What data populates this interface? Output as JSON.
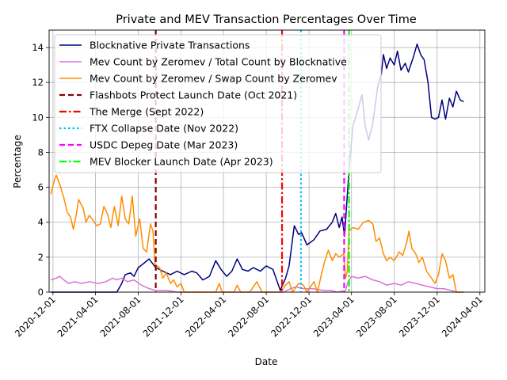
{
  "chart_data": {
    "type": "line",
    "title": "Private and MEV Transaction Percentages Over Time",
    "xlabel": "Date",
    "ylabel": "Percentage",
    "xlim": [
      "2020-11-20",
      "2024-04-15"
    ],
    "ylim": [
      0,
      15
    ],
    "grid": true,
    "legend_position": "upper-left",
    "x_ticks": [
      "2020-12-01",
      "2021-04-01",
      "2021-08-01",
      "2021-12-01",
      "2022-04-01",
      "2022-08-01",
      "2022-12-01",
      "2023-04-01",
      "2023-08-01",
      "2023-12-01",
      "2024-04-01"
    ],
    "y_ticks": [
      0,
      2,
      4,
      6,
      8,
      10,
      12,
      14
    ],
    "series": [
      {
        "name": "Blocknative Private Transactions",
        "color": "#000080",
        "style": "solid",
        "points": [
          [
            "2020-11-25",
            0
          ],
          [
            "2021-06-01",
            0
          ],
          [
            "2021-06-15",
            0.5
          ],
          [
            "2021-06-25",
            1.0
          ],
          [
            "2021-07-10",
            1.1
          ],
          [
            "2021-07-20",
            0.9
          ],
          [
            "2021-08-01",
            1.4
          ],
          [
            "2021-08-20",
            1.7
          ],
          [
            "2021-09-01",
            1.9
          ],
          [
            "2021-09-20",
            1.4
          ],
          [
            "2021-10-10",
            1.2
          ],
          [
            "2021-11-01",
            1.0
          ],
          [
            "2021-11-20",
            1.2
          ],
          [
            "2021-12-10",
            1.0
          ],
          [
            "2022-01-01",
            1.2
          ],
          [
            "2022-01-15",
            1.1
          ],
          [
            "2022-02-01",
            0.7
          ],
          [
            "2022-02-20",
            0.9
          ],
          [
            "2022-03-10",
            1.8
          ],
          [
            "2022-03-25",
            1.3
          ],
          [
            "2022-04-10",
            0.9
          ],
          [
            "2022-04-25",
            1.2
          ],
          [
            "2022-05-10",
            1.9
          ],
          [
            "2022-05-25",
            1.3
          ],
          [
            "2022-06-10",
            1.2
          ],
          [
            "2022-06-25",
            1.4
          ],
          [
            "2022-07-15",
            1.2
          ],
          [
            "2022-08-01",
            1.5
          ],
          [
            "2022-08-20",
            1.3
          ],
          [
            "2022-09-10",
            0.1
          ],
          [
            "2022-09-25",
            0.8
          ],
          [
            "2022-10-05",
            1.5
          ],
          [
            "2022-10-20",
            3.8
          ],
          [
            "2022-11-01",
            3.3
          ],
          [
            "2022-11-10",
            3.4
          ],
          [
            "2022-11-25",
            2.7
          ],
          [
            "2022-12-15",
            3.0
          ],
          [
            "2023-01-01",
            3.5
          ],
          [
            "2023-01-20",
            3.6
          ],
          [
            "2023-02-05",
            4.0
          ],
          [
            "2023-02-15",
            4.5
          ],
          [
            "2023-02-25",
            3.7
          ],
          [
            "2023-03-05",
            4.3
          ],
          [
            "2023-03-12",
            3.2
          ],
          [
            "2023-03-25",
            7.0
          ],
          [
            "2023-04-05",
            9.5
          ],
          [
            "2023-04-20",
            10.5
          ],
          [
            "2023-05-01",
            11.3
          ],
          [
            "2023-05-10",
            9.5
          ],
          [
            "2023-05-20",
            8.7
          ],
          [
            "2023-06-01",
            9.7
          ],
          [
            "2023-06-15",
            11.8
          ],
          [
            "2023-06-25",
            12.5
          ],
          [
            "2023-07-01",
            13.6
          ],
          [
            "2023-07-10",
            12.8
          ],
          [
            "2023-07-20",
            13.4
          ],
          [
            "2023-08-01",
            13.0
          ],
          [
            "2023-08-10",
            13.8
          ],
          [
            "2023-08-20",
            12.7
          ],
          [
            "2023-09-01",
            13.1
          ],
          [
            "2023-09-10",
            12.6
          ],
          [
            "2023-09-25",
            13.5
          ],
          [
            "2023-10-05",
            14.2
          ],
          [
            "2023-10-15",
            13.6
          ],
          [
            "2023-10-25",
            13.3
          ],
          [
            "2023-11-05",
            12.0
          ],
          [
            "2023-11-15",
            10.0
          ],
          [
            "2023-11-25",
            9.9
          ],
          [
            "2023-12-05",
            10.0
          ],
          [
            "2023-12-15",
            11.0
          ],
          [
            "2023-12-25",
            9.9
          ],
          [
            "2024-01-05",
            11.1
          ],
          [
            "2024-01-15",
            10.6
          ],
          [
            "2024-01-25",
            11.5
          ],
          [
            "2024-02-05",
            11.0
          ],
          [
            "2024-02-15",
            10.9
          ]
        ]
      },
      {
        "name": "Mev Count by Zeromev / Total Count by Blocknative",
        "color": "#da70d6",
        "style": "solid",
        "points": [
          [
            "2020-11-25",
            0.7
          ],
          [
            "2020-12-10",
            0.8
          ],
          [
            "2020-12-20",
            0.9
          ],
          [
            "2021-01-01",
            0.7
          ],
          [
            "2021-01-15",
            0.5
          ],
          [
            "2021-02-01",
            0.6
          ],
          [
            "2021-02-20",
            0.5
          ],
          [
            "2021-03-15",
            0.6
          ],
          [
            "2021-04-10",
            0.5
          ],
          [
            "2021-05-01",
            0.6
          ],
          [
            "2021-05-20",
            0.8
          ],
          [
            "2021-06-01",
            0.7
          ],
          [
            "2021-06-15",
            0.8
          ],
          [
            "2021-07-01",
            0.6
          ],
          [
            "2021-07-20",
            0.7
          ],
          [
            "2021-08-10",
            0.4
          ],
          [
            "2021-09-01",
            0.2
          ],
          [
            "2021-09-20",
            0.1
          ],
          [
            "2021-10-20",
            0.1
          ],
          [
            "2021-11-20",
            0
          ],
          [
            "2022-09-20",
            0
          ],
          [
            "2022-10-10",
            0.2
          ],
          [
            "2022-10-25",
            0.3
          ],
          [
            "2022-11-15",
            0.2
          ],
          [
            "2022-12-10",
            0.2
          ],
          [
            "2023-01-10",
            0.1
          ],
          [
            "2023-02-01",
            0.1
          ],
          [
            "2023-02-20",
            0
          ],
          [
            "2023-03-15",
            0.1
          ],
          [
            "2023-03-22",
            0.6
          ],
          [
            "2023-04-01",
            0.9
          ],
          [
            "2023-04-20",
            0.8
          ],
          [
            "2023-05-10",
            0.9
          ],
          [
            "2023-06-01",
            0.7
          ],
          [
            "2023-06-20",
            0.6
          ],
          [
            "2023-07-10",
            0.4
          ],
          [
            "2023-08-01",
            0.5
          ],
          [
            "2023-08-20",
            0.4
          ],
          [
            "2023-09-10",
            0.6
          ],
          [
            "2023-10-01",
            0.5
          ],
          [
            "2023-10-20",
            0.4
          ],
          [
            "2023-11-10",
            0.3
          ],
          [
            "2023-12-01",
            0.2
          ],
          [
            "2023-12-20",
            0.2
          ],
          [
            "2024-01-10",
            0.1
          ],
          [
            "2024-01-25",
            0
          ],
          [
            "2024-02-15",
            0
          ]
        ]
      },
      {
        "name": "Mev Count by Zeromev / Swap Count by Zeromev",
        "color": "#ff8c00",
        "style": "solid",
        "points": [
          [
            "2020-11-25",
            5.6
          ],
          [
            "2020-12-05",
            6.4
          ],
          [
            "2020-12-10",
            6.7
          ],
          [
            "2020-12-20",
            6.2
          ],
          [
            "2021-01-01",
            5.4
          ],
          [
            "2021-01-10",
            4.6
          ],
          [
            "2021-01-20",
            4.3
          ],
          [
            "2021-01-28",
            3.6
          ],
          [
            "2021-02-05",
            4.4
          ],
          [
            "2021-02-12",
            5.3
          ],
          [
            "2021-02-25",
            4.8
          ],
          [
            "2021-03-05",
            4.0
          ],
          [
            "2021-03-15",
            4.4
          ],
          [
            "2021-03-25",
            4.1
          ],
          [
            "2021-04-05",
            3.8
          ],
          [
            "2021-04-15",
            3.9
          ],
          [
            "2021-04-25",
            4.9
          ],
          [
            "2021-05-05",
            4.5
          ],
          [
            "2021-05-15",
            3.7
          ],
          [
            "2021-05-25",
            4.9
          ],
          [
            "2021-06-05",
            3.8
          ],
          [
            "2021-06-15",
            5.5
          ],
          [
            "2021-06-25",
            4.2
          ],
          [
            "2021-07-05",
            3.9
          ],
          [
            "2021-07-15",
            5.5
          ],
          [
            "2021-07-25",
            3.2
          ],
          [
            "2021-08-05",
            4.2
          ],
          [
            "2021-08-15",
            2.5
          ],
          [
            "2021-08-25",
            2.3
          ],
          [
            "2021-09-05",
            3.9
          ],
          [
            "2021-09-12",
            3.5
          ],
          [
            "2021-09-18",
            1.6
          ],
          [
            "2021-10-01",
            1.4
          ],
          [
            "2021-10-10",
            0.8
          ],
          [
            "2021-10-20",
            1.1
          ],
          [
            "2021-11-01",
            0.5
          ],
          [
            "2021-11-10",
            0.7
          ],
          [
            "2021-11-20",
            0.3
          ],
          [
            "2021-12-01",
            0.5
          ],
          [
            "2021-12-10",
            0
          ],
          [
            "2022-03-10",
            0
          ],
          [
            "2022-03-20",
            0.5
          ],
          [
            "2022-03-28",
            0
          ],
          [
            "2022-05-01",
            0
          ],
          [
            "2022-05-10",
            0.4
          ],
          [
            "2022-05-20",
            0
          ],
          [
            "2022-06-15",
            0
          ],
          [
            "2022-07-05",
            0.6
          ],
          [
            "2022-07-20",
            0
          ],
          [
            "2022-09-10",
            0
          ],
          [
            "2022-09-25",
            0.4
          ],
          [
            "2022-10-05",
            0.6
          ],
          [
            "2022-10-15",
            0
          ],
          [
            "2022-11-01",
            0.5
          ],
          [
            "2022-11-15",
            0.4
          ],
          [
            "2022-11-25",
            0
          ],
          [
            "2022-12-15",
            0.6
          ],
          [
            "2022-12-25",
            0
          ],
          [
            "2023-01-05",
            1.0
          ],
          [
            "2023-01-15",
            1.8
          ],
          [
            "2023-01-25",
            2.4
          ],
          [
            "2023-02-05",
            1.8
          ],
          [
            "2023-02-15",
            2.2
          ],
          [
            "2023-02-25",
            2.0
          ],
          [
            "2023-03-10",
            2.2
          ],
          [
            "2023-03-15",
            0.8
          ],
          [
            "2023-03-20",
            1.2
          ],
          [
            "2023-03-25",
            3.5
          ],
          [
            "2023-04-05",
            3.7
          ],
          [
            "2023-04-20",
            3.6
          ],
          [
            "2023-05-05",
            4.0
          ],
          [
            "2023-05-20",
            4.1
          ],
          [
            "2023-06-01",
            3.9
          ],
          [
            "2023-06-10",
            2.9
          ],
          [
            "2023-06-20",
            3.1
          ],
          [
            "2023-07-01",
            2.2
          ],
          [
            "2023-07-10",
            1.8
          ],
          [
            "2023-07-20",
            2.0
          ],
          [
            "2023-08-01",
            1.8
          ],
          [
            "2023-08-15",
            2.3
          ],
          [
            "2023-08-25",
            2.1
          ],
          [
            "2023-09-05",
            2.8
          ],
          [
            "2023-09-12",
            3.5
          ],
          [
            "2023-09-20",
            2.5
          ],
          [
            "2023-10-01",
            2.2
          ],
          [
            "2023-10-10",
            1.7
          ],
          [
            "2023-10-20",
            2.0
          ],
          [
            "2023-11-01",
            1.2
          ],
          [
            "2023-11-15",
            0.8
          ],
          [
            "2023-11-25",
            0.5
          ],
          [
            "2023-12-05",
            1.0
          ],
          [
            "2023-12-15",
            2.2
          ],
          [
            "2023-12-25",
            1.8
          ],
          [
            "2024-01-05",
            0.8
          ],
          [
            "2024-01-15",
            1.0
          ],
          [
            "2024-01-25",
            0
          ],
          [
            "2024-02-15",
            0
          ]
        ]
      }
    ],
    "vlines": [
      {
        "name": "Flashbots Protect Launch Date (Oct 2021)",
        "date": "2021-09-20",
        "color": "#8b0000",
        "style": "dashed"
      },
      {
        "name": "The Merge (Sept 2022)",
        "date": "2022-09-15",
        "color": "#ff0000",
        "style": "dashdot"
      },
      {
        "name": "FTX Collapse Date (Nov 2022)",
        "date": "2022-11-08",
        "color": "#00bfff",
        "style": "dotted"
      },
      {
        "name": "USDC Depeg Date (Mar 2023)",
        "date": "2023-03-11",
        "color": "#ff00ff",
        "style": "dashed"
      },
      {
        "name": "MEV Blocker Launch Date (Apr 2023)",
        "date": "2023-03-25",
        "color": "#00ff00",
        "style": "dashdot"
      }
    ]
  }
}
